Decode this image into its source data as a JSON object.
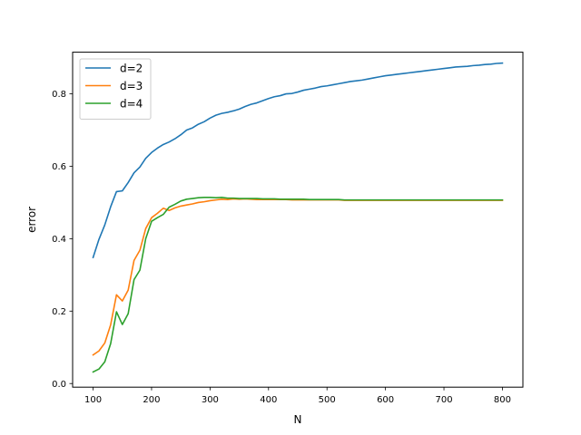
{
  "chart_data": {
    "type": "line",
    "title": "",
    "xlabel": "N",
    "ylabel": "error",
    "xlim": [
      65,
      835
    ],
    "ylim": [
      -0.01,
      0.915
    ],
    "xticks": [
      100,
      200,
      300,
      400,
      500,
      600,
      700,
      800
    ],
    "yticks": [
      0.0,
      0.2,
      0.4,
      0.6,
      0.8
    ],
    "ytick_labels": [
      "0.0",
      "0.2",
      "0.4",
      "0.6",
      "0.8"
    ],
    "grid": false,
    "legend_position": "top-left",
    "x": [
      100,
      110,
      120,
      130,
      140,
      150,
      160,
      170,
      180,
      190,
      200,
      210,
      220,
      230,
      240,
      250,
      260,
      270,
      280,
      290,
      300,
      310,
      320,
      330,
      340,
      350,
      360,
      370,
      380,
      390,
      400,
      410,
      420,
      430,
      440,
      450,
      460,
      470,
      480,
      490,
      500,
      510,
      520,
      530,
      540,
      550,
      560,
      570,
      580,
      590,
      600,
      610,
      620,
      630,
      640,
      650,
      660,
      670,
      680,
      690,
      700,
      710,
      720,
      730,
      740,
      750,
      760,
      770,
      780,
      790,
      800
    ],
    "series": [
      {
        "name": "d=2",
        "color": "#1f77b4",
        "values": [
          0.348,
          0.398,
          0.438,
          0.488,
          0.53,
          0.532,
          0.555,
          0.582,
          0.598,
          0.622,
          0.638,
          0.65,
          0.66,
          0.667,
          0.676,
          0.687,
          0.7,
          0.706,
          0.716,
          0.723,
          0.733,
          0.741,
          0.746,
          0.749,
          0.753,
          0.758,
          0.765,
          0.771,
          0.775,
          0.781,
          0.787,
          0.792,
          0.795,
          0.8,
          0.801,
          0.805,
          0.81,
          0.813,
          0.816,
          0.82,
          0.822,
          0.825,
          0.828,
          0.831,
          0.834,
          0.836,
          0.838,
          0.841,
          0.844,
          0.847,
          0.85,
          0.852,
          0.854,
          0.856,
          0.858,
          0.86,
          0.862,
          0.864,
          0.866,
          0.868,
          0.87,
          0.872,
          0.874,
          0.875,
          0.876,
          0.878,
          0.879,
          0.881,
          0.882,
          0.884,
          0.885
        ]
      },
      {
        "name": "d=3",
        "color": "#ff7f0e",
        "values": [
          0.079,
          0.09,
          0.112,
          0.162,
          0.245,
          0.228,
          0.258,
          0.34,
          0.368,
          0.428,
          0.458,
          0.47,
          0.484,
          0.478,
          0.485,
          0.49,
          0.493,
          0.496,
          0.5,
          0.502,
          0.505,
          0.507,
          0.509,
          0.508,
          0.51,
          0.509,
          0.51,
          0.509,
          0.508,
          0.508,
          0.508,
          0.508,
          0.508,
          0.508,
          0.507,
          0.507,
          0.507,
          0.507,
          0.507,
          0.507,
          0.507,
          0.507,
          0.507,
          0.506,
          0.506,
          0.506,
          0.506,
          0.506,
          0.506,
          0.506,
          0.506,
          0.506,
          0.506,
          0.506,
          0.506,
          0.506,
          0.506,
          0.506,
          0.506,
          0.506,
          0.506,
          0.506,
          0.506,
          0.506,
          0.506,
          0.506,
          0.506,
          0.506,
          0.506,
          0.506,
          0.506
        ]
      },
      {
        "name": "d=4",
        "color": "#2ca02c",
        "values": [
          0.032,
          0.04,
          0.06,
          0.11,
          0.198,
          0.163,
          0.193,
          0.287,
          0.313,
          0.4,
          0.448,
          0.458,
          0.467,
          0.487,
          0.495,
          0.504,
          0.509,
          0.511,
          0.513,
          0.514,
          0.514,
          0.513,
          0.514,
          0.512,
          0.512,
          0.511,
          0.511,
          0.511,
          0.511,
          0.51,
          0.51,
          0.51,
          0.509,
          0.509,
          0.509,
          0.509,
          0.509,
          0.508,
          0.508,
          0.508,
          0.508,
          0.508,
          0.508,
          0.507,
          0.507,
          0.507,
          0.507,
          0.507,
          0.507,
          0.507,
          0.507,
          0.507,
          0.507,
          0.507,
          0.507,
          0.507,
          0.507,
          0.507,
          0.507,
          0.507,
          0.507,
          0.507,
          0.507,
          0.507,
          0.507,
          0.507,
          0.507,
          0.507,
          0.507,
          0.507,
          0.507
        ]
      }
    ]
  }
}
